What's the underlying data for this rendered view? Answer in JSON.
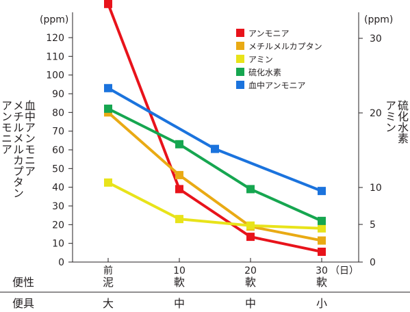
{
  "chart_data": {
    "type": "line",
    "x": [
      "前泥大",
      "10軟中",
      "20軟中",
      "30軟小"
    ],
    "x_tick_numbers": [
      "前",
      "10",
      "20",
      "30"
    ],
    "x_unit": "（日）",
    "rows": [
      {
        "label": "便性",
        "cells": [
          "泥",
          "軟",
          "軟",
          "軟"
        ]
      },
      {
        "label": "便具",
        "cells": [
          "大",
          "中",
          "中",
          "小"
        ]
      }
    ],
    "left_axis": {
      "unit": "(ppm)",
      "label_columns": [
        "血中アンモニア",
        "メチルメルカプタン",
        "アンモニア"
      ],
      "ylim": [
        0,
        125
      ],
      "ticks": [
        0,
        10,
        20,
        30,
        40,
        50,
        60,
        70,
        80,
        90,
        100,
        110,
        120
      ]
    },
    "right_axis": {
      "unit": "(ppm)",
      "label_columns": [
        "硫化水素",
        "アミン"
      ],
      "ticks": [
        0,
        5,
        10,
        20,
        30
      ]
    },
    "series": [
      {
        "name": "アンモニア",
        "color": "#e8131b",
        "points": [
          [
            0,
            138
          ],
          [
            10,
            39
          ],
          [
            20,
            13.5
          ],
          [
            30,
            5.5
          ]
        ]
      },
      {
        "name": "メチルメルカプタン",
        "color": "#e9aa14",
        "points": [
          [
            0,
            80
          ],
          [
            10,
            46.5
          ],
          [
            20,
            19
          ],
          [
            30,
            11.5
          ]
        ]
      },
      {
        "name": "アミン",
        "color": "#e8e31a",
        "points": [
          [
            0,
            42.5
          ],
          [
            10,
            23
          ],
          [
            20,
            19.5
          ],
          [
            30,
            18
          ]
        ]
      },
      {
        "name": "硫化水素",
        "color": "#16a650",
        "points": [
          [
            0,
            82
          ],
          [
            10,
            63
          ],
          [
            20,
            39
          ],
          [
            30,
            22
          ]
        ]
      },
      {
        "name": "血中アンモニア",
        "color": "#1b73dd",
        "points": [
          [
            0,
            93
          ],
          [
            15,
            60.5
          ],
          [
            30,
            38
          ]
        ]
      }
    ],
    "legend": "top-right",
    "grid": false
  }
}
